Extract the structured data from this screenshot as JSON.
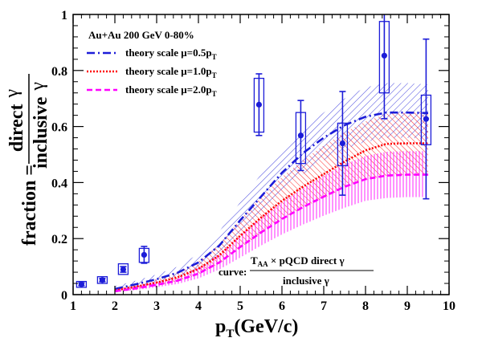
{
  "chart_data": {
    "type": "scatter",
    "title": "",
    "xlabel_main": "p",
    "xlabel_sub": "T",
    "xlabel_unit": "(GeV/c)",
    "ylabel_prefix": "fraction =",
    "ylabel_num": "direct",
    "ylabel_gamma": "γ",
    "ylabel_den": "inclusive",
    "xlim": [
      1,
      10
    ],
    "ylim": [
      0,
      1
    ],
    "xticks": [
      "1",
      "2",
      "3",
      "4",
      "5",
      "6",
      "7",
      "8",
      "9",
      "10"
    ],
    "yticks": [
      "0",
      "0.2",
      "0.4",
      "0.6",
      "0.8",
      "1"
    ],
    "legend": {
      "header": "Au+Au 200 GeV 0-80%",
      "placement": "top-left",
      "entries": [
        {
          "prefix": "theory scale  μ=0.5p",
          "sub": "T",
          "color": "#1c1cd8",
          "dash": "10,4,2,4"
        },
        {
          "prefix": "theory scale  μ=1.0p",
          "sub": "T",
          "color": "#ff0000",
          "dash": "2,2"
        },
        {
          "prefix": "theory scale  μ=2.0p",
          "sub": "T",
          "color": "#ff00ff",
          "dash": "7,4"
        }
      ]
    },
    "annotation": {
      "label": "curve:",
      "num_T": "T",
      "num_sub": "AA",
      "num_rest": " × pQCD direct  γ",
      "den": "inclusive  γ"
    },
    "data_series": {
      "color": "#1c1cd8",
      "points": [
        {
          "x": 1.2,
          "y": 0.037,
          "yerr": 0.005,
          "syslo": 0.026,
          "syshi": 0.047
        },
        {
          "x": 1.7,
          "y": 0.052,
          "yerr": 0.006,
          "syslo": 0.04,
          "syshi": 0.064
        },
        {
          "x": 2.2,
          "y": 0.09,
          "yerr": 0.01,
          "syslo": 0.072,
          "syshi": 0.11
        },
        {
          "x": 2.7,
          "y": 0.142,
          "yerr": 0.03,
          "syslo": 0.115,
          "syshi": 0.165
        },
        {
          "x": 5.45,
          "y": 0.678,
          "yerr": 0.11,
          "syslo": 0.58,
          "syshi": 0.772
        },
        {
          "x": 6.45,
          "y": 0.568,
          "yerr": 0.125,
          "syslo": 0.468,
          "syshi": 0.65
        },
        {
          "x": 7.45,
          "y": 0.54,
          "yerr": 0.185,
          "syslo": 0.46,
          "syshi": 0.612
        },
        {
          "x": 8.45,
          "y": 0.853,
          "yerr": 0.225,
          "syslo": 0.72,
          "syshi": 0.975
        },
        {
          "x": 9.45,
          "y": 0.627,
          "yerr": 0.285,
          "syslo": 0.535,
          "syshi": 0.712
        }
      ]
    },
    "curves": [
      {
        "name": "theory scale μ=0.5pT",
        "color": "#1c1cd8",
        "x": [
          2.0,
          2.5,
          3.0,
          3.5,
          4.0,
          4.5,
          5.0,
          5.5,
          6.0,
          6.5,
          7.0,
          7.5,
          8.0,
          8.5,
          9.0,
          9.5
        ],
        "y": [
          0.02,
          0.037,
          0.055,
          0.078,
          0.115,
          0.175,
          0.265,
          0.35,
          0.435,
          0.505,
          0.56,
          0.605,
          0.635,
          0.65,
          0.65,
          0.648
        ],
        "band_lo": [
          0.012,
          0.025,
          0.04,
          0.06,
          0.09,
          0.14,
          0.215,
          0.29,
          0.365,
          0.43,
          0.48,
          0.52,
          0.545,
          0.56,
          0.56,
          0.555
        ],
        "band_hi": [
          0.03,
          0.05,
          0.072,
          0.1,
          0.145,
          0.225,
          0.33,
          0.43,
          0.52,
          0.59,
          0.65,
          0.7,
          0.74,
          0.755,
          0.755,
          0.75
        ]
      },
      {
        "name": "theory scale μ=1.0pT",
        "color": "#ff0000",
        "x": [
          2.0,
          2.5,
          3.0,
          3.5,
          4.0,
          4.5,
          5.0,
          5.5,
          6.0,
          6.5,
          7.0,
          7.5,
          8.0,
          8.5,
          9.0,
          9.5
        ],
        "y": [
          0.015,
          0.028,
          0.043,
          0.062,
          0.092,
          0.14,
          0.21,
          0.275,
          0.335,
          0.385,
          0.43,
          0.475,
          0.515,
          0.538,
          0.54,
          0.54
        ],
        "band_lo": [
          0.01,
          0.02,
          0.032,
          0.048,
          0.072,
          0.11,
          0.165,
          0.22,
          0.27,
          0.31,
          0.345,
          0.38,
          0.41,
          0.425,
          0.428,
          0.428
        ],
        "band_hi": [
          0.022,
          0.037,
          0.056,
          0.08,
          0.118,
          0.18,
          0.268,
          0.348,
          0.42,
          0.48,
          0.532,
          0.58,
          0.618,
          0.645,
          0.65,
          0.65
        ]
      },
      {
        "name": "theory scale μ=2.0pT",
        "color": "#ff00ff",
        "x": [
          2.0,
          2.5,
          3.0,
          3.5,
          4.0,
          4.5,
          5.0,
          5.5,
          6.0,
          6.5,
          7.0,
          7.5,
          8.0,
          8.5,
          9.0,
          9.5
        ],
        "y": [
          0.012,
          0.022,
          0.035,
          0.05,
          0.075,
          0.115,
          0.17,
          0.222,
          0.27,
          0.312,
          0.35,
          0.385,
          0.412,
          0.425,
          0.428,
          0.428
        ],
        "band_lo": [
          0.008,
          0.016,
          0.026,
          0.038,
          0.058,
          0.09,
          0.132,
          0.175,
          0.215,
          0.25,
          0.282,
          0.31,
          0.335,
          0.345,
          0.348,
          0.348
        ],
        "band_hi": [
          0.017,
          0.03,
          0.046,
          0.066,
          0.095,
          0.145,
          0.212,
          0.275,
          0.33,
          0.38,
          0.425,
          0.465,
          0.495,
          0.51,
          0.512,
          0.512
        ]
      }
    ]
  }
}
